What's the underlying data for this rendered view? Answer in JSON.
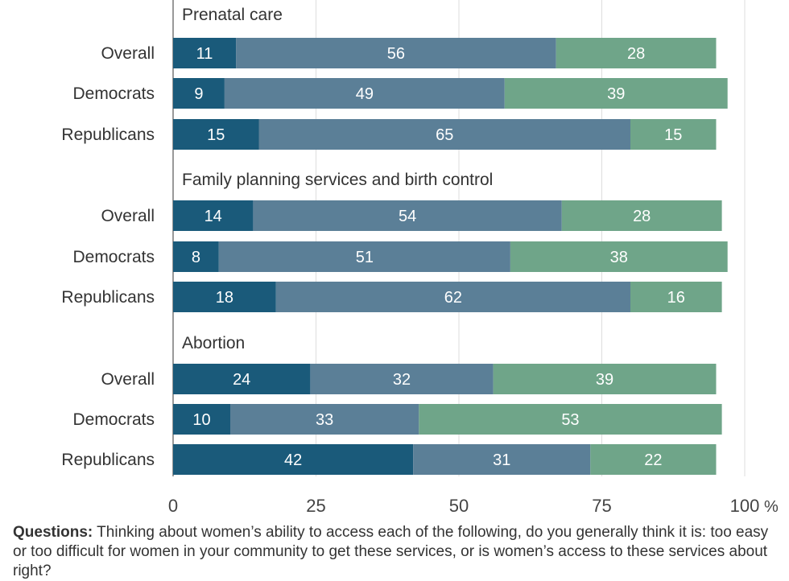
{
  "chart_data": {
    "type": "bar",
    "orientation": "horizontal",
    "stacked": true,
    "xlim": [
      0,
      100
    ],
    "x_ticks": [
      "0",
      "25",
      "50",
      "75",
      "100"
    ],
    "x_unit": "%",
    "grid": true,
    "series_colors": [
      "#1a5a7a",
      "#5b7f97",
      "#6fa589"
    ],
    "groups": [
      {
        "title": "Prenatal care",
        "rows": [
          {
            "label": "Overall",
            "values": [
              11,
              56,
              28
            ]
          },
          {
            "label": "Democrats",
            "values": [
              9,
              49,
              39
            ]
          },
          {
            "label": "Republicans",
            "values": [
              15,
              65,
              15
            ]
          }
        ]
      },
      {
        "title": "Family planning services and birth control",
        "rows": [
          {
            "label": "Overall",
            "values": [
              14,
              54,
              28
            ]
          },
          {
            "label": "Democrats",
            "values": [
              8,
              51,
              38
            ]
          },
          {
            "label": "Republicans",
            "values": [
              18,
              62,
              16
            ]
          }
        ]
      },
      {
        "title": "Abortion",
        "rows": [
          {
            "label": "Overall",
            "values": [
              24,
              32,
              39
            ]
          },
          {
            "label": "Democrats",
            "values": [
              10,
              33,
              53
            ]
          },
          {
            "label": "Republicans",
            "values": [
              42,
              31,
              22
            ]
          }
        ]
      }
    ]
  },
  "note": {
    "label": "Questions:",
    "text": "Thinking about women’s ability to access each of the following, do you generally think it is: too easy or too difficult for women in your community to get these services, or is women’s access to these services about right?"
  }
}
